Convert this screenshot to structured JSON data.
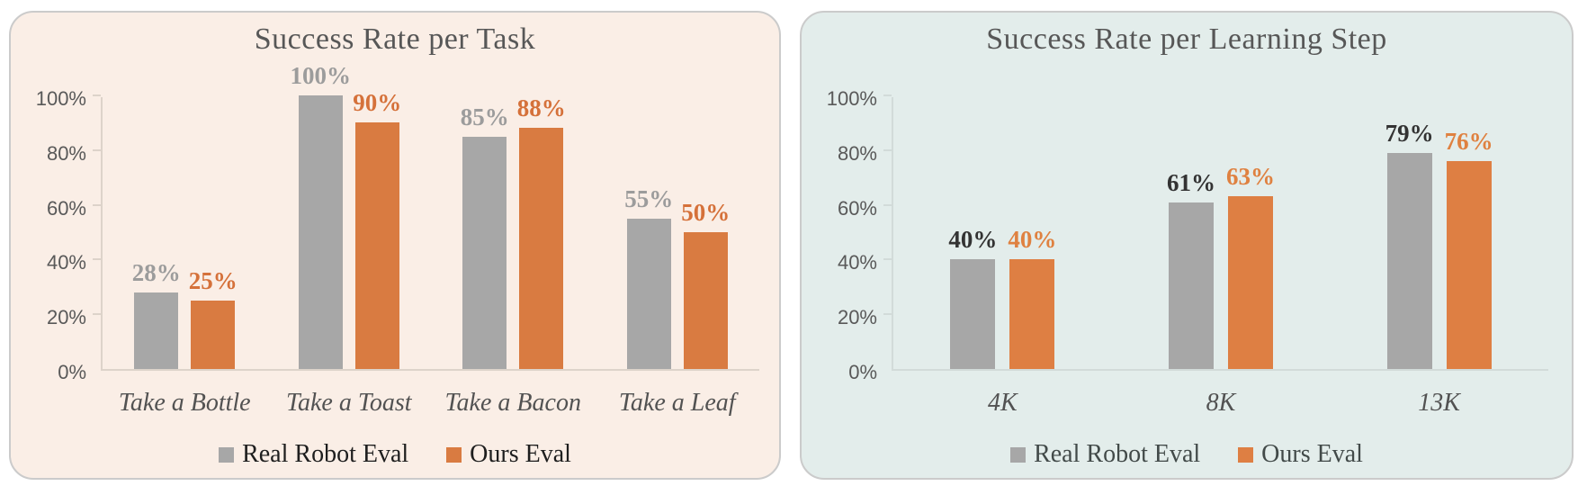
{
  "chart_data": [
    {
      "type": "bar",
      "title": "Success Rate per Task",
      "xlabel": "",
      "ylabel": "",
      "ylim": [
        0,
        100
      ],
      "grid": false,
      "legend_position": "bottom",
      "y_ticks": [
        "0%",
        "20%",
        "40%",
        "60%",
        "80%",
        "100%"
      ],
      "categories": [
        "Take a Bottle",
        "Take a Toast",
        "Take a Bacon",
        "Take a Leaf"
      ],
      "series": [
        {
          "name": "Real Robot Eval",
          "values": [
            28,
            100,
            85,
            55
          ],
          "labels": [
            "28%",
            "100%",
            "85%",
            "55%"
          ],
          "bar_color": "#a7a7a7",
          "label_color": "#9c9c9c"
        },
        {
          "name": "Ours Eval",
          "values": [
            25,
            90,
            88,
            50
          ],
          "labels": [
            "25%",
            "90%",
            "88%",
            "50%"
          ],
          "bar_color": "#d97b41",
          "label_color": "#d5713a"
        }
      ],
      "panel_bg": "#faeee6",
      "axis_color": "#ddd3ca",
      "legend_text_color": "#1e1e1e"
    },
    {
      "type": "bar",
      "title": "Success Rate per Learning Step",
      "xlabel": "",
      "ylabel": "",
      "ylim": [
        0,
        100
      ],
      "grid": false,
      "legend_position": "bottom",
      "y_ticks": [
        "0%",
        "20%",
        "40%",
        "60%",
        "80%",
        "100%"
      ],
      "categories": [
        "4K",
        "8K",
        "13K"
      ],
      "series": [
        {
          "name": "Real Robot Eval",
          "values": [
            40,
            61,
            79
          ],
          "labels": [
            "40%",
            "61%",
            "79%"
          ],
          "bar_color": "#a7a7a7",
          "label_color": "#333333"
        },
        {
          "name": "Ours Eval",
          "values": [
            40,
            63,
            76
          ],
          "labels": [
            "40%",
            "63%",
            "76%"
          ],
          "bar_color": "#de7f43",
          "label_color": "#df8140"
        }
      ],
      "panel_bg": "#e3edeb",
      "axis_color": "#d2dbd9",
      "legend_text_color": "#424a49"
    }
  ]
}
